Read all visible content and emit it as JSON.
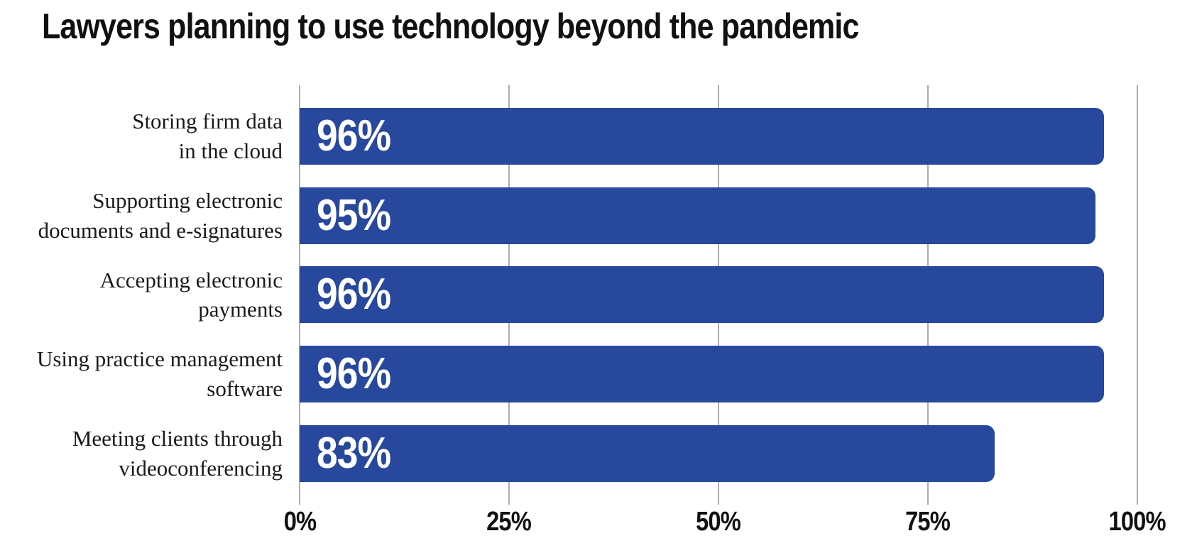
{
  "title": "Lawyers planning to use technology beyond the pandemic",
  "chart_data": {
    "type": "bar",
    "orientation": "horizontal",
    "title": "Lawyers planning to use technology beyond the pandemic",
    "categories": [
      "Storing firm data in the cloud",
      "Supporting electronic documents and e-signatures",
      "Accepting electronic payments",
      "Using practice management software",
      "Meeting clients through videoconferencing"
    ],
    "category_lines": [
      [
        "Storing firm data",
        "in the cloud"
      ],
      [
        "Supporting electronic",
        "documents and e-signatures"
      ],
      [
        "Accepting electronic",
        "payments"
      ],
      [
        "Using practice management",
        "software"
      ],
      [
        "Meeting clients through",
        "videoconferencing"
      ]
    ],
    "values": [
      96,
      95,
      96,
      96,
      83
    ],
    "value_labels": [
      "96%",
      "95%",
      "96%",
      "96%",
      "83%"
    ],
    "xlabel": "",
    "ylabel": "",
    "xlim": [
      0,
      100
    ],
    "x_tick_values": [
      0,
      25,
      50,
      75,
      100
    ],
    "x_tick_labels": [
      "0%",
      "25%",
      "50%",
      "75%",
      "100%"
    ],
    "legend": null,
    "grid": "vertical-gridlines-only",
    "colors": {
      "bar": "#28489E",
      "value_label": "#FFFFFF",
      "gridline": "#ADADAD",
      "title": "#111111",
      "category_label": "#1A1A1A",
      "tick_label": "#111111",
      "background": "#FFFFFF"
    }
  }
}
